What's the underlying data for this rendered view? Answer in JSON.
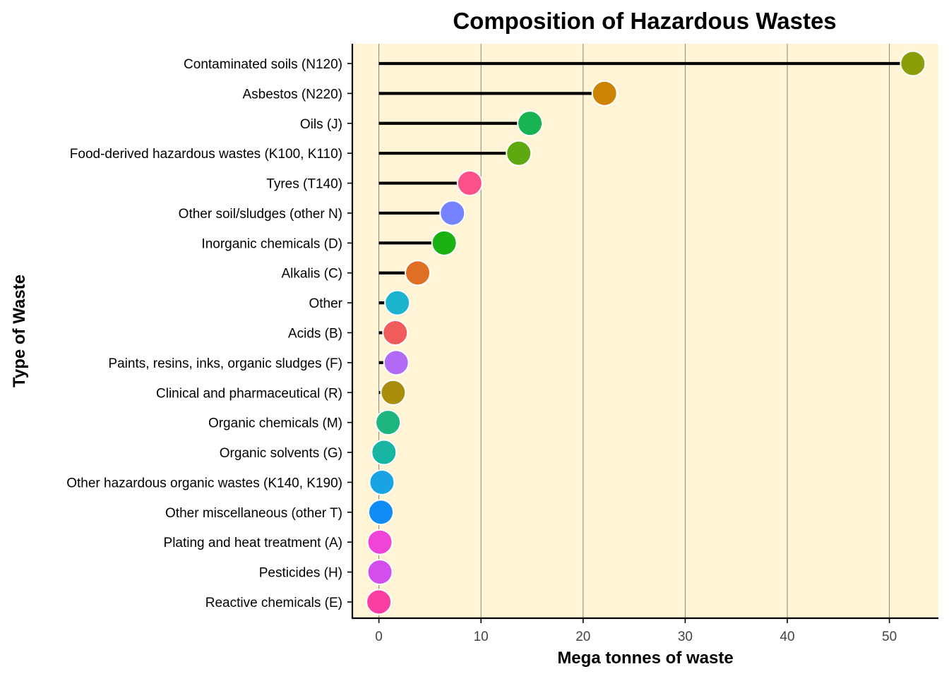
{
  "chart_data": {
    "type": "lollipop",
    "title": "Composition of Hazardous Wastes",
    "xlabel": "Mega tonnes of waste",
    "ylabel": "Type of Waste",
    "xlim": [
      -2.6,
      54.8
    ],
    "x_ticks": [
      0,
      10,
      20,
      30,
      40,
      50
    ],
    "grid": "vertical major lines",
    "legend": "none",
    "panel_background": "#FFF5D6",
    "stem_color": "#000000",
    "categories": [
      "Contaminated soils (N120)",
      "Asbestos (N220)",
      "Oils (J)",
      "Food-derived hazardous wastes (K100, K110)",
      "Tyres (T140)",
      "Other soil/sludges (other N)",
      "Inorganic chemicals (D)",
      "Alkalis (C)",
      "Other",
      "Acids (B)",
      "Paints, resins, inks, organic sludges (F)",
      "Clinical and pharmaceutical (R)",
      "Organic chemicals (M)",
      "Organic solvents (G)",
      "Other hazardous organic wastes (K140, K190)",
      "Other miscellaneous (other T)",
      "Plating and heat treatment (A)",
      "Pesticides (H)",
      "Reactive chemicals (E)"
    ],
    "values": [
      52.3,
      22.1,
      14.8,
      13.7,
      8.9,
      7.2,
      6.4,
      3.8,
      1.8,
      1.6,
      1.7,
      1.4,
      0.9,
      0.5,
      0.3,
      0.2,
      0.1,
      0.1,
      0.0
    ],
    "colors": [
      "#8B9E0A",
      "#CC8304",
      "#18B454",
      "#5DA90F",
      "#FC5088",
      "#7583FF",
      "#19B212",
      "#E06F26",
      "#1CB3CF",
      "#F05C5C",
      "#B06AF5",
      "#A98E0E",
      "#1EB57E",
      "#19B5A3",
      "#18A4E4",
      "#118CF4",
      "#EF45D6",
      "#D34EEC",
      "#FB3FA2"
    ]
  }
}
